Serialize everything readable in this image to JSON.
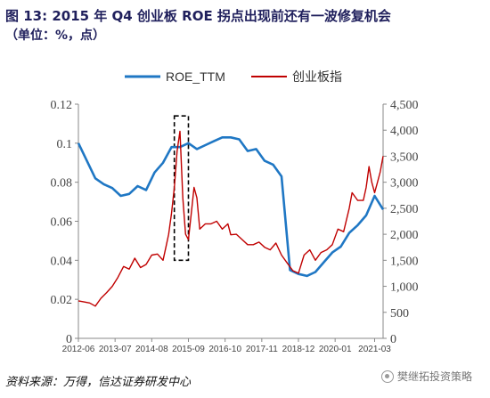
{
  "title": "图 13: 2015 年 Q4 创业板 ROE 拐点出现前还有一波修复机会",
  "subtitle": "（单位：%，点）",
  "source": "资料来源：万得，信达证券研发中心",
  "watermark": "樊继拓投资策略",
  "colors": {
    "roe": "#1f77c4",
    "index": "#c00000",
    "axis": "#888888"
  },
  "chart_data": {
    "type": "line",
    "legend": {
      "position": "top-center"
    },
    "grid": false,
    "x_ticks": [
      "2012-06",
      "2013-07",
      "2014-08",
      "2015-09",
      "2016-10",
      "2017-11",
      "2018-12",
      "2020-01",
      "2021-03"
    ],
    "y_left": {
      "lim": [
        0,
        0.12
      ],
      "ticks": [
        "0",
        "0.02",
        "0.04",
        "0.06",
        "0.08",
        "0.1",
        "0.12"
      ]
    },
    "y_right": {
      "lim": [
        0,
        4500
      ],
      "ticks": [
        "0",
        "500",
        "1,000",
        "1,500",
        "2,000",
        "2,500",
        "3,000",
        "3,500",
        "4,000",
        "4,500"
      ]
    },
    "highlight_box": {
      "x_range": [
        "2015-04",
        "2015-09"
      ],
      "y_left_range": [
        0.04,
        0.114
      ],
      "style": "dashed"
    },
    "series": [
      {
        "name": "ROE_TTM",
        "axis": "left",
        "points": [
          [
            "2012-06",
            0.1
          ],
          [
            "2012-09",
            0.091
          ],
          [
            "2012-12",
            0.082
          ],
          [
            "2013-03",
            0.079
          ],
          [
            "2013-06",
            0.077
          ],
          [
            "2013-09",
            0.073
          ],
          [
            "2013-12",
            0.074
          ],
          [
            "2014-03",
            0.078
          ],
          [
            "2014-06",
            0.076
          ],
          [
            "2014-09",
            0.085
          ],
          [
            "2014-12",
            0.09
          ],
          [
            "2015-03",
            0.098
          ],
          [
            "2015-06",
            0.098
          ],
          [
            "2015-09",
            0.1
          ],
          [
            "2015-12",
            0.097
          ],
          [
            "2016-03",
            0.099
          ],
          [
            "2016-06",
            0.101
          ],
          [
            "2016-09",
            0.103
          ],
          [
            "2016-12",
            0.103
          ],
          [
            "2017-03",
            0.102
          ],
          [
            "2017-06",
            0.096
          ],
          [
            "2017-09",
            0.097
          ],
          [
            "2017-12",
            0.091
          ],
          [
            "2018-03",
            0.089
          ],
          [
            "2018-06",
            0.083
          ],
          [
            "2018-09",
            0.035
          ],
          [
            "2018-12",
            0.033
          ],
          [
            "2019-03",
            0.032
          ],
          [
            "2019-06",
            0.034
          ],
          [
            "2019-09",
            0.039
          ],
          [
            "2019-12",
            0.044
          ],
          [
            "2020-03",
            0.047
          ],
          [
            "2020-06",
            0.054
          ],
          [
            "2020-09",
            0.058
          ],
          [
            "2020-12",
            0.063
          ],
          [
            "2021-03",
            0.073
          ],
          [
            "2021-06",
            0.066
          ]
        ]
      },
      {
        "name": "创业板指",
        "axis": "right",
        "points": [
          [
            "2012-06",
            720
          ],
          [
            "2012-08",
            700
          ],
          [
            "2012-10",
            680
          ],
          [
            "2012-12",
            620
          ],
          [
            "2013-02",
            770
          ],
          [
            "2013-04",
            880
          ],
          [
            "2013-06",
            1000
          ],
          [
            "2013-08",
            1170
          ],
          [
            "2013-10",
            1380
          ],
          [
            "2013-12",
            1330
          ],
          [
            "2014-02",
            1540
          ],
          [
            "2014-04",
            1360
          ],
          [
            "2014-06",
            1420
          ],
          [
            "2014-08",
            1600
          ],
          [
            "2014-10",
            1620
          ],
          [
            "2014-12",
            1500
          ],
          [
            "2015-01",
            1750
          ],
          [
            "2015-02",
            2000
          ],
          [
            "2015-03",
            2400
          ],
          [
            "2015-04",
            2900
          ],
          [
            "2015-05",
            3600
          ],
          [
            "2015-06",
            3980
          ],
          [
            "2015-07",
            2700
          ],
          [
            "2015-08",
            2000
          ],
          [
            "2015-09",
            1900
          ],
          [
            "2015-10",
            2400
          ],
          [
            "2015-11",
            2900
          ],
          [
            "2015-12",
            2700
          ],
          [
            "2016-01",
            2100
          ],
          [
            "2016-03",
            2200
          ],
          [
            "2016-05",
            2200
          ],
          [
            "2016-07",
            2250
          ],
          [
            "2016-09",
            2100
          ],
          [
            "2016-11",
            2200
          ],
          [
            "2016-12",
            1990
          ],
          [
            "2017-02",
            2000
          ],
          [
            "2017-04",
            1900
          ],
          [
            "2017-06",
            1800
          ],
          [
            "2017-08",
            1800
          ],
          [
            "2017-10",
            1850
          ],
          [
            "2017-12",
            1750
          ],
          [
            "2018-02",
            1700
          ],
          [
            "2018-04",
            1830
          ],
          [
            "2018-06",
            1600
          ],
          [
            "2018-08",
            1450
          ],
          [
            "2018-10",
            1300
          ],
          [
            "2018-12",
            1250
          ],
          [
            "2019-02",
            1600
          ],
          [
            "2019-04",
            1700
          ],
          [
            "2019-06",
            1500
          ],
          [
            "2019-08",
            1650
          ],
          [
            "2019-10",
            1700
          ],
          [
            "2019-12",
            1800
          ],
          [
            "2020-02",
            2100
          ],
          [
            "2020-04",
            2050
          ],
          [
            "2020-06",
            2500
          ],
          [
            "2020-07",
            2800
          ],
          [
            "2020-09",
            2650
          ],
          [
            "2020-11",
            2650
          ],
          [
            "2020-12",
            2900
          ],
          [
            "2021-01",
            3300
          ],
          [
            "2021-02",
            3000
          ],
          [
            "2021-03",
            2800
          ],
          [
            "2021-04",
            3000
          ],
          [
            "2021-05",
            3200
          ],
          [
            "2021-06",
            3500
          ]
        ]
      }
    ]
  }
}
